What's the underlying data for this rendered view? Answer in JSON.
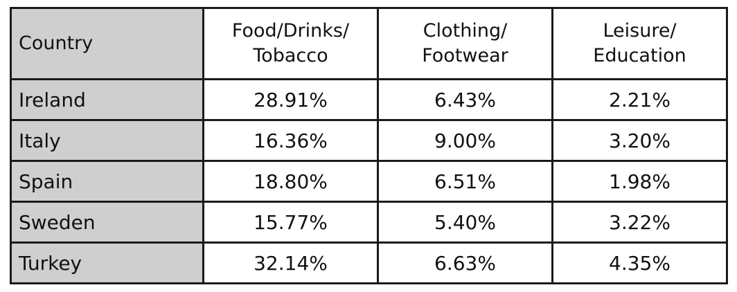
{
  "chart_data": {
    "type": "table",
    "columns": [
      {
        "lines": [
          "Country"
        ]
      },
      {
        "lines": [
          "Food/Drinks/",
          "Tobacco"
        ]
      },
      {
        "lines": [
          "Clothing/",
          "Footwear"
        ]
      },
      {
        "lines": [
          "Leisure/",
          "Education"
        ]
      }
    ],
    "rows": [
      {
        "country": "Ireland",
        "values": [
          "28.91%",
          "6.43%",
          "2.21%"
        ]
      },
      {
        "country": "Italy",
        "values": [
          "16.36%",
          "9.00%",
          "3.20%"
        ]
      },
      {
        "country": "Spain",
        "values": [
          "18.80%",
          "6.51%",
          "1.98%"
        ]
      },
      {
        "country": "Sweden",
        "values": [
          "15.77%",
          "5.40%",
          "3.22%"
        ]
      },
      {
        "country": "Turkey",
        "values": [
          "32.14%",
          "6.63%",
          "4.35%"
        ]
      }
    ]
  },
  "colors": {
    "header_fill": "#cfcfcf",
    "cell_fill": "#ffffff",
    "border": "#1a1a1a",
    "text": "#111111"
  }
}
